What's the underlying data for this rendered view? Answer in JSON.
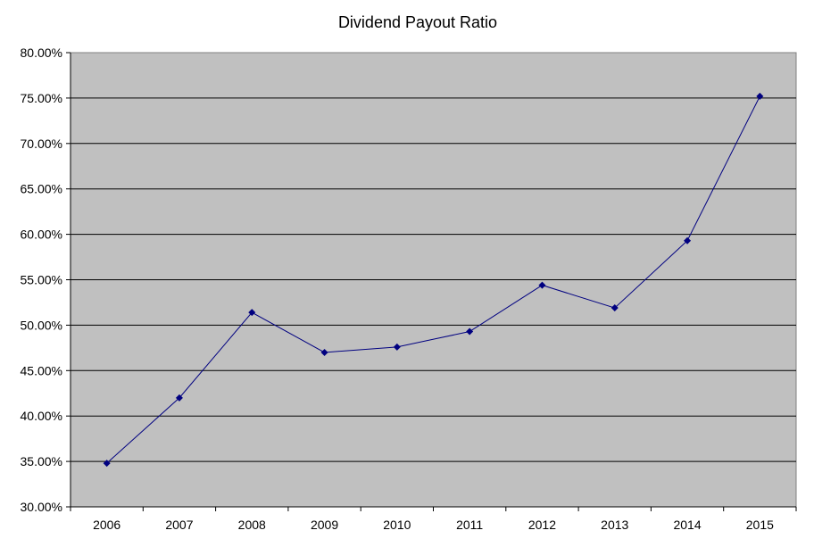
{
  "chart_data": {
    "type": "line",
    "title": "Dividend Payout Ratio",
    "xlabel": "",
    "ylabel": "",
    "categories": [
      "2006",
      "2007",
      "2008",
      "2009",
      "2010",
      "2011",
      "2012",
      "2013",
      "2014",
      "2015"
    ],
    "series": [
      {
        "values": [
          34.8,
          42.0,
          51.4,
          47.0,
          47.6,
          49.3,
          54.4,
          51.9,
          59.3,
          75.2
        ]
      }
    ],
    "ylim": [
      30,
      80
    ],
    "y_tick_step": 5,
    "y_tick_labels": [
      "30.00%",
      "35.00%",
      "40.00%",
      "45.00%",
      "50.00%",
      "55.00%",
      "60.00%",
      "65.00%",
      "70.00%",
      "75.00%",
      "80.00%"
    ],
    "grid": true,
    "legend": "none",
    "colors": {
      "plot_background": "#c0c0c0",
      "line": "#000080",
      "marker": "#000080",
      "grid": "#000000"
    },
    "marker": "diamond"
  }
}
